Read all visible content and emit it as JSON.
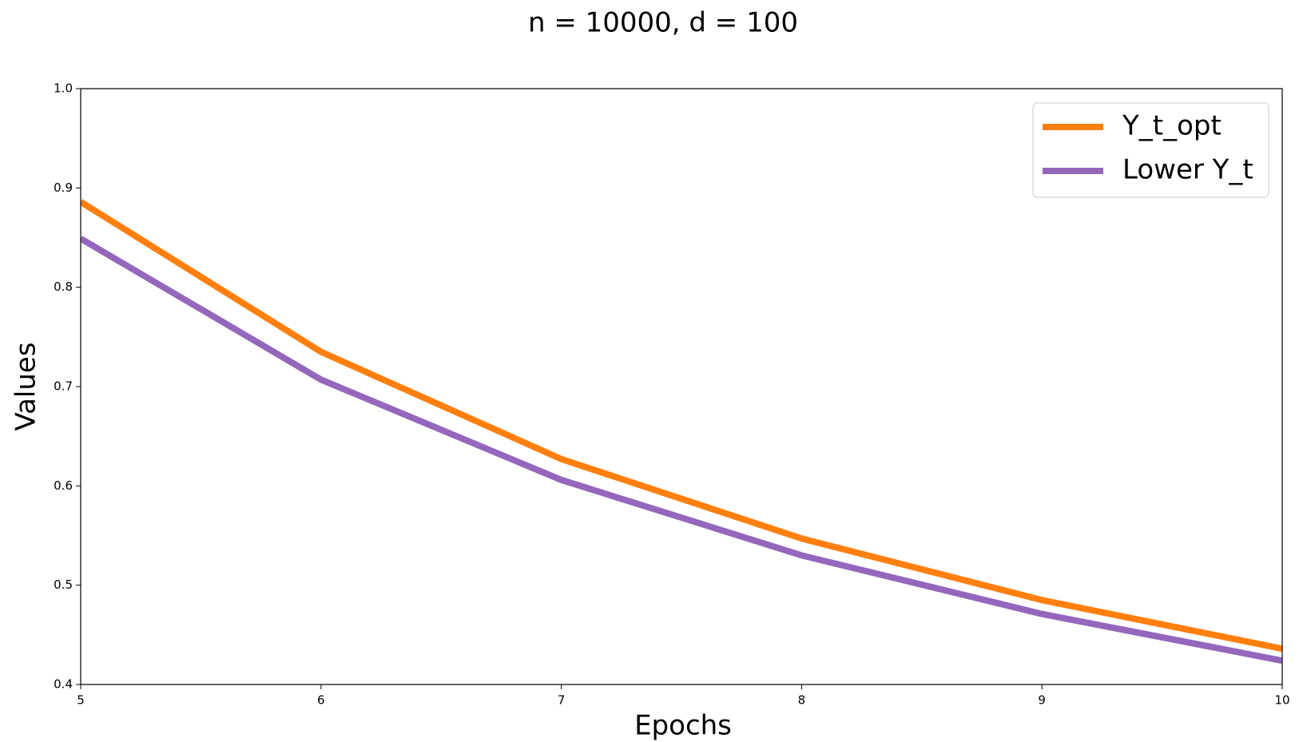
{
  "chart_data": {
    "type": "line",
    "title": "n = 10000, d = 100",
    "x_label": "Epochs",
    "y_label": "Values",
    "x": [
      5,
      6,
      7,
      8,
      9,
      10
    ],
    "series": [
      {
        "name": "Y_t_opt",
        "color": "#ff7f0e",
        "values": [
          0.886,
          0.735,
          0.627,
          0.547,
          0.485,
          0.436
        ]
      },
      {
        "name": "Lower Y_t",
        "color": "#9467bd",
        "values": [
          0.849,
          0.707,
          0.606,
          0.53,
          0.471,
          0.424
        ]
      }
    ],
    "xlim": [
      5,
      10
    ],
    "xticks": [
      5,
      6,
      7,
      8,
      9,
      10
    ],
    "ylim": [
      0.4,
      1
    ],
    "yticks": [
      0.4,
      0.5,
      0.6,
      0.7,
      0.8,
      0.9,
      {
        "value": 1,
        "label": "1.0"
      }
    ],
    "grid": false,
    "legend": "upper right"
  }
}
